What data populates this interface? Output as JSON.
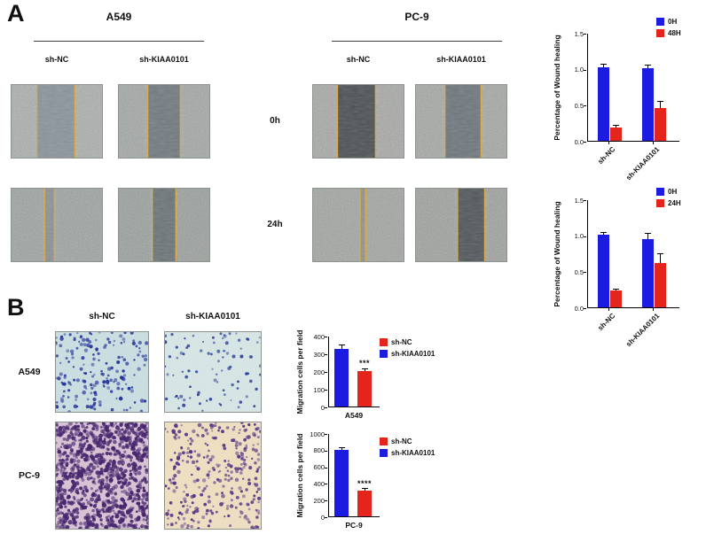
{
  "figure": {
    "panel_a_label": "A",
    "panel_b_label": "B"
  },
  "panelA": {
    "groups": [
      {
        "title": "A549",
        "col_labels": [
          "sh-NC",
          "sh-KIAA0101"
        ]
      },
      {
        "title": "PC-9",
        "col_labels": [
          "sh-NC",
          "sh-KIAA0101"
        ]
      }
    ],
    "time_labels": [
      "0h",
      "24h"
    ],
    "micrographs": [
      {
        "cell_line": "A549",
        "condition": "sh-NC",
        "time": "0h",
        "base": "#a9aeac",
        "gap_color": "#8a949b",
        "gap_center": 0.49,
        "gap_width": 0.42,
        "seed": 1
      },
      {
        "cell_line": "A549",
        "condition": "sh-KIAA0101",
        "time": "0h",
        "base": "#a1a6a3",
        "gap_color": "#727b80",
        "gap_center": 0.5,
        "gap_width": 0.36,
        "seed": 2
      },
      {
        "cell_line": "PC-9",
        "condition": "sh-NC",
        "time": "0h",
        "base": "#a6a8a4",
        "gap_color": "#4d5256",
        "gap_center": 0.48,
        "gap_width": 0.42,
        "seed": 3
      },
      {
        "cell_line": "PC-9",
        "condition": "sh-KIAA0101",
        "time": "0h",
        "base": "#a4a7a4",
        "gap_color": "#6f777e",
        "gap_center": 0.52,
        "gap_width": 0.4,
        "seed": 4
      },
      {
        "cell_line": "A549",
        "condition": "sh-NC",
        "time": "24h",
        "base": "#9ca2a0",
        "gap_color": "#8b9297",
        "gap_center": 0.42,
        "gap_width": 0.11,
        "seed": 5
      },
      {
        "cell_line": "A549",
        "condition": "sh-KIAA0101",
        "time": "24h",
        "base": "#989e9b",
        "gap_color": "#6d7579",
        "gap_center": 0.5,
        "gap_width": 0.26,
        "seed": 6
      },
      {
        "cell_line": "PC-9",
        "condition": "sh-NC",
        "time": "24h",
        "base": "#a1a4a0",
        "gap_color": "#8f948f",
        "gap_center": 0.55,
        "gap_width": 0.06,
        "seed": 7
      },
      {
        "cell_line": "PC-9",
        "condition": "sh-KIAA0101",
        "time": "24h",
        "base": "#9da09c",
        "gap_color": "#53585c",
        "gap_center": 0.61,
        "gap_width": 0.3,
        "seed": 8
      }
    ],
    "wound_edge_color": "#d9ab4a"
  },
  "panelB": {
    "col_labels": [
      "sh-NC",
      "sh-KIAA0101"
    ],
    "row_labels": [
      "A549",
      "PC-9"
    ],
    "micrographs": [
      {
        "cell_line": "A549",
        "condition": "sh-NC",
        "bg": "#cbdfe2",
        "dot": "#26369a",
        "count": 180,
        "rmin": 1.1,
        "rmax": 2.3,
        "seed": 11
      },
      {
        "cell_line": "A549",
        "condition": "sh-KIAA0101",
        "bg": "#d7e7e5",
        "dot": "#2a3c98",
        "count": 90,
        "rmin": 1.0,
        "rmax": 2.1,
        "seed": 22
      },
      {
        "cell_line": "PC-9",
        "condition": "sh-NC",
        "bg": "#d8c3d4",
        "dot": "#47276f",
        "count": 950,
        "rmin": 1.2,
        "rmax": 2.6,
        "seed": 33
      },
      {
        "cell_line": "PC-9",
        "condition": "sh-KIAA0101",
        "bg": "#efe0c2",
        "dot": "#5b3488",
        "count": 300,
        "rmin": 1.1,
        "rmax": 2.3,
        "seed": 44
      }
    ]
  },
  "chart_data": [
    {
      "type": "bar",
      "ylabel": "Percentage of Wound healing",
      "ylim": [
        0,
        1.5
      ],
      "yticks": [
        "0.0",
        "0.5",
        "1.0",
        "1.5"
      ],
      "categories": [
        "sh-NC",
        "sh-KIAA0101"
      ],
      "series": [
        {
          "name": "0H",
          "color": "#1c1ce0",
          "values": [
            1.02,
            1.01
          ],
          "errors": [
            0.04,
            0.04
          ]
        },
        {
          "name": "48H",
          "color": "#e3251c",
          "values": [
            0.18,
            0.45
          ],
          "errors": [
            0.03,
            0.09
          ]
        }
      ],
      "legend_position": "top-right",
      "grid": false
    },
    {
      "type": "bar",
      "ylabel": "Percentage of Wound healing",
      "ylim": [
        0,
        1.5
      ],
      "yticks": [
        "0.0",
        "0.5",
        "1.0",
        "1.5"
      ],
      "categories": [
        "sh-NC",
        "sh-KIAA0101"
      ],
      "series": [
        {
          "name": "0H",
          "color": "#1c1ce0",
          "values": [
            1.01,
            0.95
          ],
          "errors": [
            0.02,
            0.07
          ]
        },
        {
          "name": "24H",
          "color": "#e3251c",
          "values": [
            0.23,
            0.62
          ],
          "errors": [
            0.02,
            0.12
          ]
        }
      ],
      "legend_position": "top-right",
      "grid": false
    },
    {
      "type": "bar",
      "ylabel": "Migration cells per field",
      "xlabel": "A549",
      "ylim": [
        0,
        400
      ],
      "yticks": [
        "0",
        "100",
        "200",
        "300",
        "400"
      ],
      "bars": [
        {
          "color": "#1c1ce0",
          "value": 325,
          "error": 22
        },
        {
          "color": "#e3251c",
          "value": 200,
          "error": 8,
          "sig": "***"
        }
      ],
      "legend": [
        {
          "label": "sh-NC",
          "color": "#e3251c"
        },
        {
          "label": "sh-KIAA0101",
          "color": "#1c1ce0"
        }
      ],
      "grid": false
    },
    {
      "type": "bar",
      "ylabel": "Migration cells per field",
      "xlabel": "PC-9",
      "ylim": [
        0,
        1000
      ],
      "yticks": [
        "0",
        "200",
        "400",
        "600",
        "800",
        "1000"
      ],
      "bars": [
        {
          "color": "#1c1ce0",
          "value": 800,
          "error": 18
        },
        {
          "color": "#e3251c",
          "value": 310,
          "error": 15,
          "sig": "****"
        }
      ],
      "legend": [
        {
          "label": "sh-NC",
          "color": "#e3251c"
        },
        {
          "label": "sh-KIAA0101",
          "color": "#1c1ce0"
        }
      ],
      "grid": false
    }
  ]
}
